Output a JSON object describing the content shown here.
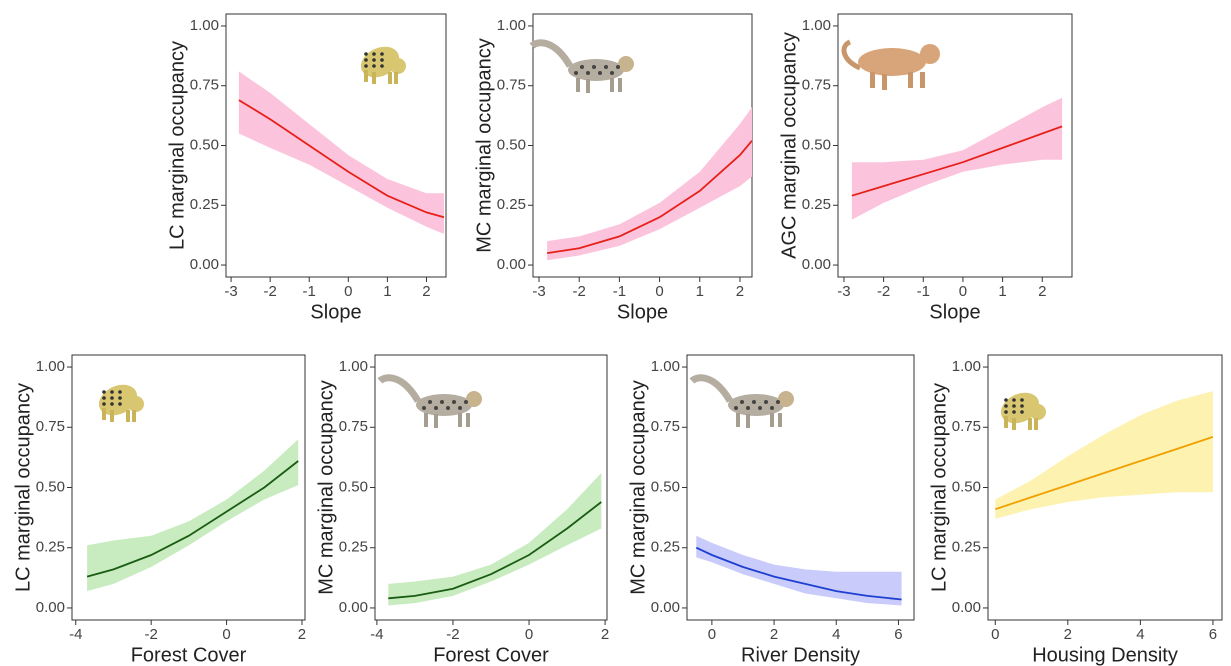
{
  "chart_data": [
    {
      "type": "line",
      "x_label": "Slope",
      "y_label": "LC marginal occupancy",
      "x": [
        -2.8,
        -2,
        -1,
        0,
        1,
        2,
        2.45
      ],
      "values": [
        0.69,
        0.61,
        0.5,
        0.39,
        0.29,
        0.22,
        0.2
      ],
      "lower": [
        0.55,
        0.49,
        0.42,
        0.33,
        0.24,
        0.16,
        0.13
      ],
      "upper": [
        0.81,
        0.72,
        0.59,
        0.46,
        0.36,
        0.3,
        0.3
      ],
      "color": "#e8201a",
      "band_color": "#fcc4dc",
      "xlim": [
        -3.13,
        2.5
      ],
      "xticks": [
        -3,
        -2,
        -1,
        0,
        1,
        2
      ],
      "ylim": [
        -0.05,
        1.05
      ],
      "yticks": [
        {
          "value": 0,
          "label": "0.00"
        },
        {
          "value": 0.25,
          "label": "0.25"
        },
        {
          "value": 0.5,
          "label": "0.50"
        },
        {
          "value": 0.75,
          "label": "0.75"
        },
        {
          "value": 1,
          "label": "1.00"
        }
      ]
    },
    {
      "type": "line",
      "x_label": "Slope",
      "y_label": "MC marginal occupancy",
      "x": [
        -2.8,
        -2,
        -1,
        0,
        1,
        2,
        2.3
      ],
      "values": [
        0.05,
        0.07,
        0.12,
        0.2,
        0.31,
        0.46,
        0.52
      ],
      "lower": [
        0.02,
        0.04,
        0.08,
        0.15,
        0.24,
        0.33,
        0.37
      ],
      "upper": [
        0.1,
        0.12,
        0.17,
        0.26,
        0.39,
        0.59,
        0.66
      ],
      "color": "#e8201a",
      "band_color": "#fcc4dc",
      "xlim": [
        -3.15,
        2.3
      ],
      "xticks": [
        -3,
        -2,
        -1,
        0,
        1,
        2
      ],
      "ylim": [
        -0.05,
        1.05
      ],
      "yticks": [
        {
          "value": 0,
          "label": "0.00"
        },
        {
          "value": 0.25,
          "label": "0.25"
        },
        {
          "value": 0.5,
          "label": "0.50"
        },
        {
          "value": 0.75,
          "label": "0.75"
        },
        {
          "value": 1,
          "label": "1.00"
        }
      ]
    },
    {
      "type": "line",
      "x_label": "Slope",
      "y_label": "AGC marginal occupancy",
      "x": [
        -2.8,
        -2,
        -1,
        0,
        1,
        2,
        2.5
      ],
      "values": [
        0.29,
        0.33,
        0.38,
        0.43,
        0.49,
        0.55,
        0.58
      ],
      "lower": [
        0.19,
        0.26,
        0.33,
        0.39,
        0.42,
        0.44,
        0.44
      ],
      "upper": [
        0.43,
        0.43,
        0.44,
        0.48,
        0.57,
        0.66,
        0.7
      ],
      "color": "#e8201a",
      "band_color": "#fcc4dc",
      "xlim": [
        -3.15,
        2.75
      ],
      "xticks": [
        -3,
        -2,
        -1,
        0,
        1,
        2
      ],
      "ylim": [
        -0.05,
        1.05
      ],
      "yticks": [
        {
          "value": 0,
          "label": "0.00"
        },
        {
          "value": 0.25,
          "label": "0.25"
        },
        {
          "value": 0.5,
          "label": "0.50"
        },
        {
          "value": 0.75,
          "label": "0.75"
        },
        {
          "value": 1,
          "label": "1.00"
        }
      ]
    },
    {
      "type": "line",
      "x_label": "Forest Cover",
      "y_label": "LC marginal occupancy",
      "x": [
        -3.7,
        -3,
        -2,
        -1,
        0,
        1,
        1.9
      ],
      "values": [
        0.13,
        0.16,
        0.22,
        0.3,
        0.4,
        0.5,
        0.61
      ],
      "lower": [
        0.07,
        0.1,
        0.17,
        0.26,
        0.36,
        0.45,
        0.51
      ],
      "upper": [
        0.26,
        0.28,
        0.3,
        0.36,
        0.45,
        0.57,
        0.7
      ],
      "color": "#1a5c12",
      "band_color": "#c8ecc0",
      "xlim": [
        -4.1,
        2.08
      ],
      "xticks": [
        -4,
        -2,
        0,
        2
      ],
      "ylim": [
        -0.05,
        1.05
      ],
      "yticks": [
        {
          "value": 0,
          "label": "0.00"
        },
        {
          "value": 0.25,
          "label": "0.25"
        },
        {
          "value": 0.5,
          "label": "0.50"
        },
        {
          "value": 0.75,
          "label": "0.75"
        },
        {
          "value": 1,
          "label": "1.00"
        }
      ]
    },
    {
      "type": "line",
      "x_label": "Forest Cover",
      "y_label": "MC marginal occupancy",
      "x": [
        -3.7,
        -3,
        -2,
        -1,
        0,
        1,
        1.9
      ],
      "values": [
        0.04,
        0.05,
        0.08,
        0.14,
        0.22,
        0.33,
        0.44
      ],
      "lower": [
        0.01,
        0.02,
        0.05,
        0.11,
        0.18,
        0.26,
        0.33
      ],
      "upper": [
        0.1,
        0.11,
        0.13,
        0.18,
        0.27,
        0.41,
        0.56
      ],
      "color": "#1a5c12",
      "band_color": "#c8ecc0",
      "xlim": [
        -4.05,
        2.05
      ],
      "xticks": [
        -4,
        -2,
        0,
        2
      ],
      "ylim": [
        -0.05,
        1.05
      ],
      "yticks": [
        {
          "value": 0,
          "label": "0.00"
        },
        {
          "value": 0.25,
          "label": "0.25"
        },
        {
          "value": 0.5,
          "label": "0.50"
        },
        {
          "value": 0.75,
          "label": "0.75"
        },
        {
          "value": 1,
          "label": "1.00"
        }
      ]
    },
    {
      "type": "line",
      "x_label": "River Density",
      "y_label": "MC marginal occupancy",
      "x": [
        -0.5,
        0,
        1,
        2,
        3,
        4,
        5,
        6.1
      ],
      "values": [
        0.25,
        0.22,
        0.17,
        0.13,
        0.1,
        0.07,
        0.05,
        0.035
      ],
      "lower": [
        0.21,
        0.19,
        0.14,
        0.1,
        0.06,
        0.04,
        0.02,
        0.01
      ],
      "upper": [
        0.3,
        0.27,
        0.22,
        0.18,
        0.16,
        0.15,
        0.15,
        0.15
      ],
      "color": "#1f3fd0",
      "band_color": "#c9ccfb",
      "xlim": [
        -0.8,
        6.5
      ],
      "xticks": [
        0,
        2,
        4,
        6
      ],
      "ylim": [
        -0.05,
        1.05
      ],
      "yticks": [
        {
          "value": 0,
          "label": "0.00"
        },
        {
          "value": 0.25,
          "label": "0.25"
        },
        {
          "value": 0.5,
          "label": "0.50"
        },
        {
          "value": 0.75,
          "label": "0.75"
        },
        {
          "value": 1,
          "label": "1.00"
        }
      ]
    },
    {
      "type": "line",
      "x_label": "Housing Density",
      "y_label": "LC marginal occupancy",
      "x": [
        0,
        1,
        2,
        3,
        4,
        5,
        6
      ],
      "values": [
        0.41,
        0.46,
        0.51,
        0.56,
        0.61,
        0.66,
        0.71
      ],
      "lower": [
        0.37,
        0.41,
        0.44,
        0.46,
        0.47,
        0.48,
        0.48
      ],
      "upper": [
        0.45,
        0.53,
        0.63,
        0.72,
        0.8,
        0.86,
        0.9
      ],
      "color": "#f0a000",
      "band_color": "#fdf2b0",
      "xlim": [
        -0.2,
        6.25
      ],
      "xticks": [
        0,
        2,
        4,
        6
      ],
      "ylim": [
        -0.05,
        1.05
      ],
      "yticks": [
        {
          "value": 0,
          "label": "0.00"
        },
        {
          "value": 0.25,
          "label": "0.25"
        },
        {
          "value": 0.5,
          "label": "0.50"
        },
        {
          "value": 0.75,
          "label": "0.75"
        },
        {
          "value": 1,
          "label": "1.00"
        }
      ]
    }
  ]
}
